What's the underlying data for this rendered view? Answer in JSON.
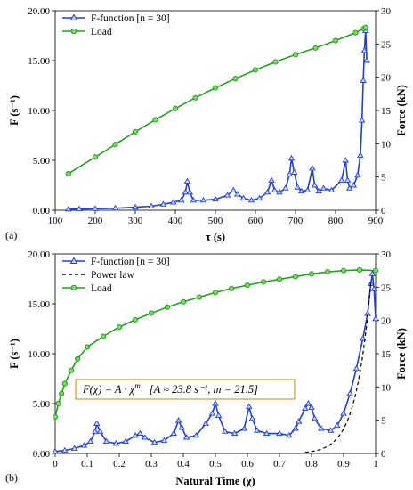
{
  "chart_data": [
    {
      "type": "line",
      "panel_label": "(a)",
      "xlabel": "τ (s)",
      "ylabel": "F (s⁻¹)",
      "y2label": "Force (kN)",
      "xlim": [
        100,
        900
      ],
      "ylim": [
        0,
        20
      ],
      "y2lim": [
        0,
        30
      ],
      "xticks": [
        "100",
        "200",
        "300",
        "400",
        "500",
        "600",
        "700",
        "800",
        "900"
      ],
      "yticks": [
        "0.00",
        "5.00",
        "10.00",
        "15.00",
        "20.00"
      ],
      "y2ticks": [
        "0",
        "5",
        "10",
        "15",
        "20",
        "25",
        "30"
      ],
      "legend": [
        "F-function [n = 30]",
        "Load"
      ],
      "series": [
        {
          "name": "F-function [n = 30]",
          "axis": "left",
          "color": "#1f3fd6",
          "marker": "triangle",
          "x": [
            133,
            160,
            200,
            250,
            300,
            340,
            370,
            395,
            415,
            425,
            430,
            436,
            445,
            470,
            500,
            530,
            545,
            555,
            570,
            590,
            610,
            630,
            640,
            648,
            660,
            675,
            685,
            690,
            697,
            705,
            715,
            730,
            742,
            748,
            758,
            770,
            790,
            815,
            825,
            830,
            835,
            845,
            855,
            862,
            866,
            869,
            872,
            875,
            878
          ],
          "y": [
            0.1,
            0.12,
            0.15,
            0.2,
            0.3,
            0.4,
            0.6,
            0.8,
            1.0,
            1.8,
            2.9,
            1.8,
            1.0,
            1.0,
            1.1,
            1.5,
            2.0,
            1.6,
            1.2,
            1.0,
            1.2,
            1.8,
            3.0,
            2.0,
            1.8,
            2.2,
            3.6,
            5.2,
            3.8,
            2.3,
            1.9,
            2.0,
            4.2,
            2.5,
            1.9,
            2.2,
            2.0,
            3.0,
            5.0,
            3.0,
            2.2,
            2.5,
            3.5,
            5.5,
            9.0,
            13.0,
            16.0,
            18.0,
            15.0
          ]
        },
        {
          "name": "Load",
          "axis": "right",
          "color": "#22a21f",
          "marker": "circle",
          "x": [
            133,
            200,
            250,
            300,
            350,
            400,
            450,
            500,
            550,
            600,
            650,
            700,
            750,
            800,
            850,
            870,
            875
          ],
          "y": [
            5.5,
            8.0,
            9.9,
            11.8,
            13.6,
            15.3,
            16.9,
            18.4,
            19.8,
            21.1,
            22.3,
            23.4,
            24.4,
            25.5,
            26.7,
            27.3,
            27.5
          ]
        }
      ]
    },
    {
      "type": "line",
      "panel_label": "(b)",
      "xlabel": "Natural Time (χ)",
      "ylabel": "F (s⁻¹)",
      "y2label": "Force (kN)",
      "xlim": [
        0,
        1
      ],
      "ylim": [
        0,
        20
      ],
      "y2lim": [
        0,
        30
      ],
      "xticks": [
        "0",
        "0.1",
        "0.2",
        "0.3",
        "0.4",
        "0.5",
        "0.6",
        "0.7",
        "0.8",
        "0.9",
        "1"
      ],
      "yticks": [
        "0.00",
        "5.00",
        "10.00",
        "15.00",
        "20.00"
      ],
      "y2ticks": [
        "0",
        "5",
        "10",
        "15",
        "20",
        "25",
        "30"
      ],
      "legend": [
        "F-function [n = 30]",
        "Power law",
        "Load"
      ],
      "annotation": {
        "equation": "F(χ) = A · χ",
        "exponent": "m",
        "params": "[A ≈ 23.8 s⁻¹, m = 21.5]"
      },
      "series": [
        {
          "name": "F-function [n = 30]",
          "axis": "left",
          "color": "#1f3fd6",
          "marker": "triangle",
          "x": [
            0.0,
            0.03,
            0.06,
            0.09,
            0.11,
            0.125,
            0.13,
            0.14,
            0.16,
            0.19,
            0.22,
            0.25,
            0.265,
            0.28,
            0.31,
            0.34,
            0.37,
            0.385,
            0.395,
            0.41,
            0.44,
            0.47,
            0.49,
            0.5,
            0.51,
            0.53,
            0.56,
            0.59,
            0.605,
            0.615,
            0.63,
            0.66,
            0.7,
            0.73,
            0.75,
            0.76,
            0.78,
            0.79,
            0.8,
            0.81,
            0.83,
            0.86,
            0.88,
            0.9,
            0.92,
            0.94,
            0.96,
            0.975,
            0.985,
            0.99,
            0.995,
            1.0
          ],
          "y": [
            0.2,
            0.3,
            0.5,
            0.8,
            1.2,
            2.2,
            3.0,
            2.2,
            1.2,
            1.0,
            1.2,
            1.8,
            2.0,
            1.6,
            1.1,
            1.3,
            2.0,
            3.3,
            2.6,
            1.6,
            1.8,
            3.0,
            4.0,
            5.0,
            3.8,
            2.2,
            2.0,
            2.5,
            4.7,
            3.5,
            2.3,
            2.0,
            2.0,
            1.8,
            2.5,
            3.2,
            4.5,
            5.0,
            4.6,
            3.5,
            2.5,
            2.3,
            2.8,
            4.0,
            6.0,
            8.5,
            11.5,
            14.0,
            17.0,
            18.0,
            16.5,
            13.5
          ]
        },
        {
          "name": "Power law",
          "axis": "left",
          "color": "#000000",
          "marker": "none",
          "function": "power",
          "A": 23.8,
          "m": 21.5,
          "x_range": [
            0.78,
            0.985
          ]
        },
        {
          "name": "Load",
          "axis": "right",
          "color": "#22a21f",
          "marker": "circle",
          "x": [
            0.0,
            0.01,
            0.02,
            0.03,
            0.05,
            0.07,
            0.1,
            0.15,
            0.2,
            0.25,
            0.3,
            0.35,
            0.4,
            0.45,
            0.5,
            0.55,
            0.6,
            0.65,
            0.7,
            0.75,
            0.8,
            0.85,
            0.9,
            0.95,
            1.0
          ],
          "y": [
            5.5,
            7.5,
            9.0,
            10.5,
            12.5,
            14.2,
            16.0,
            17.6,
            19.0,
            20.1,
            21.1,
            22.0,
            22.8,
            23.5,
            24.2,
            24.8,
            25.3,
            25.8,
            26.2,
            26.6,
            27.0,
            27.3,
            27.5,
            27.6,
            27.5
          ]
        }
      ]
    }
  ]
}
